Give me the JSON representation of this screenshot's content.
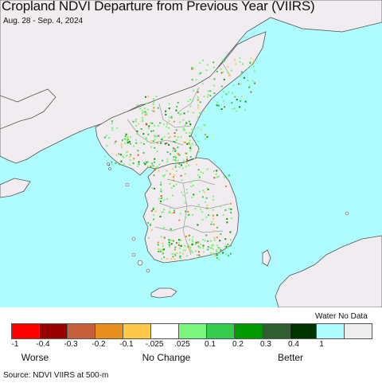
{
  "header": {
    "title": "Cropland NDVI Departure from Previous Year (VIIRS)",
    "subtitle": "Aug. 28 - Sep. 4, 2024"
  },
  "map": {
    "water_color": "#aefcff",
    "land_color": "#f1ecf0",
    "border_color": "#888888",
    "region": "Korean Peninsula"
  },
  "legend": {
    "colors": [
      "#ff0000",
      "#990000",
      "#c5603c",
      "#e8901e",
      "#ffc84b",
      "#ffffff",
      "#7bf57b",
      "#33cc4d",
      "#009900",
      "#2f5e2f",
      "#003300"
    ],
    "tick_labels": [
      "-1",
      "-0.4",
      "-0.3",
      "-0.2",
      "-0.1",
      "-.025",
      ".025",
      "0.1",
      "0.2",
      "0.3",
      "0.4",
      "1"
    ],
    "category_labels": {
      "worse": "Worse",
      "no_change": "No Change",
      "better": "Better"
    },
    "special": {
      "label": "Water No Data",
      "water_color": "#aefcff",
      "nodata_color": "#eeeeee"
    }
  },
  "footer": {
    "source": "Source: NDVI VIIRS at 500-m"
  }
}
